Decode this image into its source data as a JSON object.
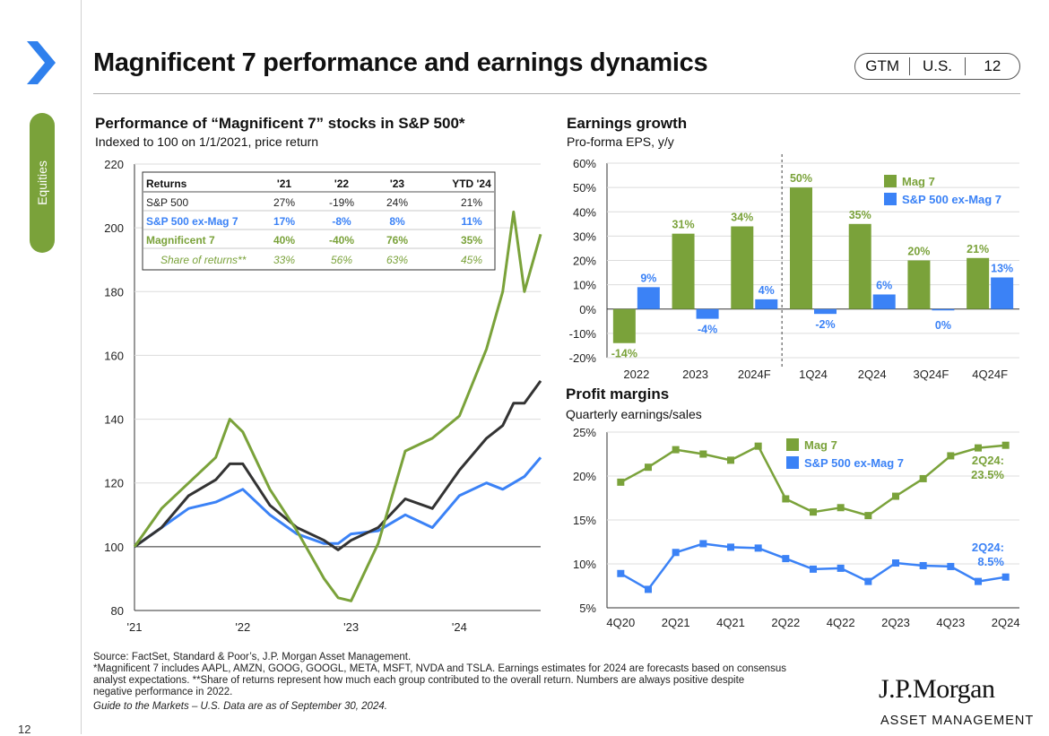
{
  "page": {
    "title": "Magnificent 7 performance and earnings dynamics",
    "badges": [
      "GTM",
      "U.S.",
      "12"
    ],
    "side_tab": "Equities",
    "page_number": "12",
    "colors": {
      "accent": "#3b82f6",
      "green": "#7aa23a",
      "dark": "#333333"
    }
  },
  "footnotes": {
    "source": "Source: FactSet, Standard & Poor’s, J.P. Morgan Asset Management.",
    "note1": "*Magnificent 7 includes AAPL, AMZN, GOOG, GOOGL, META, MSFT, NVDA and TSLA. Earnings estimates for 2024 are forecasts based on consensus",
    "note2": "analyst expectations. **Share of returns represent how much each group contributed to the overall return. Numbers are always positive despite",
    "note3": "negative performance in 2022.",
    "guide": "Guide to the Markets – U.S. Data are as of September 30, 2024."
  },
  "logo": {
    "main": "J.P.Morgan",
    "sub": "ASSET MANAGEMENT"
  },
  "chart_data": [
    {
      "type": "line",
      "title": "Performance of “Magnificent 7” stocks in S&P 500*",
      "subtitle": "Indexed to 100 on 1/1/2021, price return",
      "x_ticks": [
        "'21",
        "'22",
        "'23",
        "'24"
      ],
      "y_ticks": [
        80,
        100,
        120,
        140,
        160,
        180,
        200,
        220
      ],
      "ylim": [
        80,
        220
      ],
      "grid": "horizontal",
      "x": [
        2021.0,
        2021.25,
        2021.5,
        2021.75,
        2021.88,
        2022.0,
        2022.25,
        2022.5,
        2022.75,
        2022.88,
        2023.0,
        2023.25,
        2023.5,
        2023.75,
        2024.0,
        2024.25,
        2024.4,
        2024.5,
        2024.6,
        2024.75
      ],
      "series": [
        {
          "name": "Magnificent 7",
          "color": "#7aa23a",
          "values": [
            100,
            112,
            120,
            128,
            140,
            136,
            118,
            105,
            90,
            84,
            83,
            101,
            130,
            134,
            141,
            162,
            180,
            205,
            180,
            198
          ]
        },
        {
          "name": "S&P 500",
          "color": "#333333",
          "values": [
            100,
            106,
            116,
            121,
            126,
            126,
            113,
            106,
            102,
            99,
            102,
            106,
            115,
            112,
            124,
            134,
            138,
            145,
            145,
            152
          ]
        },
        {
          "name": "S&P 500 ex-Mag 7",
          "color": "#3b82f6",
          "values": [
            100,
            106,
            112,
            114,
            116,
            118,
            110,
            104,
            101,
            101,
            104,
            105,
            110,
            106,
            116,
            120,
            118,
            120,
            122,
            128
          ]
        }
      ],
      "table": {
        "headers": [
          "Returns",
          "'21",
          "'22",
          "'23",
          "YTD '24"
        ],
        "rows": [
          {
            "label": "S&P 500",
            "color": "#222222",
            "values": [
              "27%",
              "-19%",
              "24%",
              "21%"
            ]
          },
          {
            "label": "S&P 500 ex-Mag 7",
            "color": "#3b82f6",
            "values": [
              "17%",
              "-8%",
              "8%",
              "11%"
            ]
          },
          {
            "label": "Magnificent 7",
            "color": "#7aa23a",
            "values": [
              "40%",
              "-40%",
              "76%",
              "35%"
            ]
          },
          {
            "label": "Share of returns**",
            "color": "#7aa23a",
            "italic": true,
            "values": [
              "33%",
              "56%",
              "63%",
              "45%"
            ]
          }
        ]
      }
    },
    {
      "type": "bar",
      "title": "Earnings growth",
      "subtitle": "Pro-forma EPS, y/y",
      "categories": [
        "2022",
        "2023",
        "2024F",
        "1Q24",
        "2Q24",
        "3Q24F",
        "4Q24F"
      ],
      "series": [
        {
          "name": "Mag 7",
          "color": "#7aa23a",
          "values": [
            -14,
            31,
            34,
            50,
            35,
            20,
            21
          ],
          "labels": [
            "-14%",
            "31%",
            "34%",
            "50%",
            "35%",
            "20%",
            "21%"
          ]
        },
        {
          "name": "S&P 500 ex-Mag 7",
          "color": "#3b82f6",
          "values": [
            9,
            -4,
            4,
            -2,
            6,
            0,
            13
          ],
          "labels": [
            "9%",
            "-4%",
            "4%",
            "-2%",
            "6%",
            "0%",
            "13%"
          ]
        }
      ],
      "y_ticks": [
        "-20%",
        "-10%",
        "0%",
        "10%",
        "20%",
        "30%",
        "40%",
        "50%",
        "60%"
      ],
      "ylim": [
        -20,
        60
      ],
      "legend": "top-right"
    },
    {
      "type": "line",
      "title": "Profit margins",
      "subtitle": "Quarterly earnings/sales",
      "categories": [
        "4Q20",
        "1Q21",
        "2Q21",
        "3Q21",
        "4Q21",
        "1Q22",
        "2Q22",
        "3Q22",
        "4Q22",
        "1Q23",
        "2Q23",
        "3Q23",
        "4Q23",
        "1Q24",
        "2Q24"
      ],
      "x_tick_labels": [
        "4Q20",
        "2Q21",
        "4Q21",
        "2Q22",
        "4Q22",
        "2Q23",
        "4Q23",
        "2Q24"
      ],
      "series": [
        {
          "name": "Mag 7",
          "color": "#7aa23a",
          "values": [
            19.3,
            21.0,
            23.0,
            22.5,
            21.8,
            23.4,
            17.4,
            15.9,
            16.4,
            15.5,
            17.7,
            19.7,
            22.3,
            23.2,
            23.5
          ]
        },
        {
          "name": "S&P 500 ex-Mag 7",
          "color": "#3b82f6",
          "values": [
            8.9,
            7.1,
            11.3,
            12.3,
            11.9,
            11.8,
            10.6,
            9.4,
            9.5,
            8.0,
            10.1,
            9.8,
            9.7,
            8.0,
            8.5
          ]
        }
      ],
      "annotations": [
        {
          "series": "Mag 7",
          "lines": [
            "2Q24:",
            "23.5%"
          ]
        },
        {
          "series": "S&P 500 ex-Mag 7",
          "lines": [
            "2Q24:",
            "8.5%"
          ]
        }
      ],
      "y_ticks": [
        "5%",
        "10%",
        "15%",
        "20%",
        "25%"
      ],
      "ylim": [
        5,
        25
      ],
      "legend": "top-right"
    }
  ]
}
